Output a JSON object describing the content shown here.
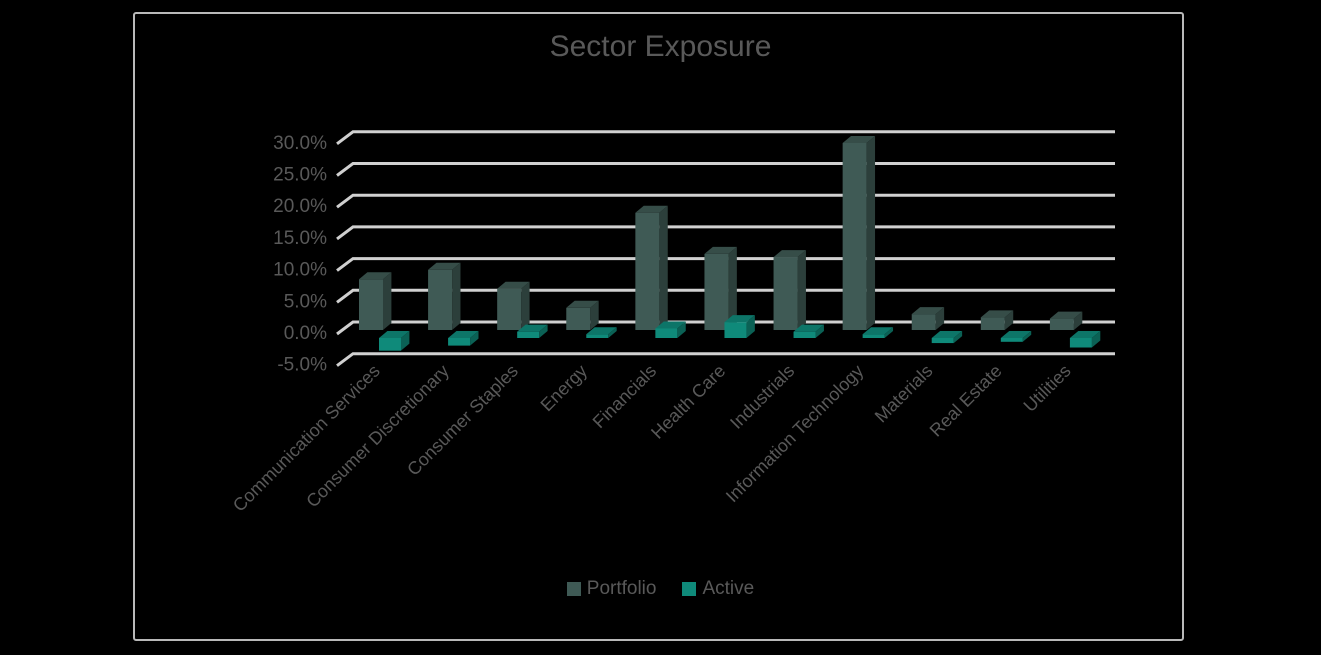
{
  "chart_data": {
    "type": "bar",
    "title": "Sector Exposure",
    "xlabel": "",
    "ylabel": "",
    "ylim": [
      -0.05,
      0.3
    ],
    "yticks": [
      "-5.0%",
      "0.0%",
      "5.0%",
      "10.0%",
      "15.0%",
      "20.0%",
      "25.0%",
      "30.0%"
    ],
    "grid": true,
    "legend_position": "bottom",
    "style": "3d-clustered-column",
    "categories": [
      "Communication Services",
      "Consumer Discretionary",
      "Consumer Staples",
      "Energy",
      "Financials",
      "Health Care",
      "Industrials",
      "Information Technology",
      "Materials",
      "Real Estate",
      "Utilities"
    ],
    "series": [
      {
        "name": "Portfolio",
        "color": "#3f5a55",
        "values": [
          0.08,
          0.095,
          0.065,
          0.035,
          0.185,
          0.12,
          0.115,
          0.295,
          0.025,
          0.02,
          0.018
        ]
      },
      {
        "name": "Active",
        "color": "#0f8a7a",
        "values": [
          -0.02,
          -0.012,
          0.01,
          0.003,
          0.015,
          0.025,
          0.01,
          0.003,
          -0.008,
          -0.003,
          -0.015
        ]
      }
    ]
  },
  "legend": {
    "items": [
      {
        "label": "Portfolio",
        "color": "#3f5a55"
      },
      {
        "label": "Active",
        "color": "#0f8a7a"
      }
    ]
  }
}
